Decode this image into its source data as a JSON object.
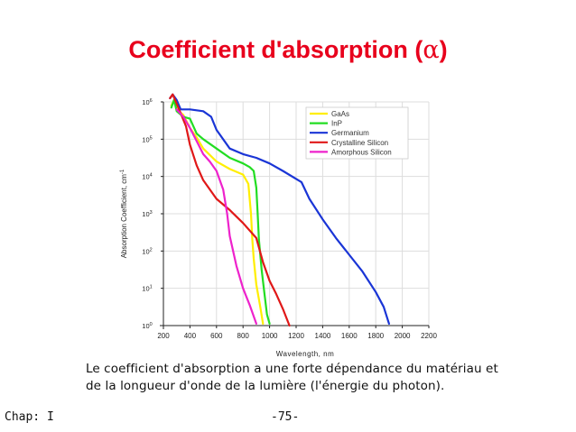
{
  "slide": {
    "title_text": "Coefficient d'absorption (",
    "title_symbol": "α",
    "title_close": ")",
    "caption_line1": "Le coefficient d'absorption a une forte dépendance du matériau et",
    "caption_line2": "de la longueur d'onde de la lumière (l'énergie du photon).",
    "footer_chapter": "Chap: I",
    "footer_page": "-75-"
  },
  "chart_data": {
    "type": "line",
    "xlabel": "Wavelength, nm",
    "ylabel": "Absorption Coefficient, cm",
    "ylabel_superscript": "-1",
    "xlim": [
      200,
      2200
    ],
    "ylim_exponent": [
      0,
      6
    ],
    "y_scale": "log",
    "x_ticks": [
      200,
      400,
      600,
      800,
      1000,
      1200,
      1400,
      1600,
      1800,
      2000,
      2200
    ],
    "y_tick_base": "10",
    "y_tick_exponents": [
      "0",
      "1",
      "2",
      "3",
      "4",
      "5",
      "6"
    ],
    "grid": true,
    "legend_position": "top-right",
    "series": [
      {
        "name": "GaAs",
        "color": "#ffee00",
        "x": [
          260,
          280,
          300,
          350,
          400,
          450,
          500,
          600,
          700,
          800,
          840,
          860,
          870,
          880,
          900,
          930,
          950
        ],
        "y_exp": [
          5.9,
          6.05,
          5.8,
          5.65,
          5.3,
          5.05,
          4.75,
          4.4,
          4.2,
          4.05,
          3.8,
          3.0,
          2.3,
          1.8,
          1.1,
          0.5,
          0.05
        ]
      },
      {
        "name": "InP",
        "color": "#22dd22",
        "x": [
          260,
          280,
          300,
          350,
          400,
          450,
          500,
          600,
          700,
          800,
          850,
          880,
          900,
          910,
          920,
          940,
          960,
          980,
          1000
        ],
        "y_exp": [
          5.85,
          6.05,
          5.75,
          5.6,
          5.55,
          5.15,
          5.0,
          4.75,
          4.5,
          4.35,
          4.25,
          4.15,
          3.7,
          3.0,
          2.3,
          1.5,
          0.9,
          0.3,
          0.05
        ]
      },
      {
        "name": "Germanium",
        "color": "#1a35d6",
        "x": [
          250,
          270,
          300,
          330,
          400,
          500,
          560,
          600,
          700,
          800,
          900,
          1000,
          1100,
          1240,
          1300,
          1400,
          1500,
          1600,
          1700,
          1800,
          1860,
          1900
        ],
        "y_exp": [
          6.1,
          6.2,
          6.05,
          5.8,
          5.8,
          5.75,
          5.6,
          5.25,
          4.75,
          4.6,
          4.5,
          4.35,
          4.15,
          3.85,
          3.4,
          2.85,
          2.35,
          1.9,
          1.45,
          0.9,
          0.5,
          0.05
        ]
      },
      {
        "name": "Crystalline Silicon",
        "color": "#e01818",
        "x": [
          250,
          270,
          300,
          330,
          370,
          400,
          450,
          500,
          600,
          700,
          800,
          900,
          950,
          1000,
          1050,
          1100,
          1150
        ],
        "y_exp": [
          6.1,
          6.2,
          5.95,
          5.7,
          5.35,
          4.85,
          4.3,
          3.9,
          3.4,
          3.1,
          2.75,
          2.35,
          1.7,
          1.2,
          0.85,
          0.45,
          0.0
        ]
      },
      {
        "name": "Amorphous Silicon",
        "color": "#ee22cc",
        "x": [
          300,
          350,
          400,
          450,
          500,
          550,
          600,
          650,
          680,
          700,
          750,
          800,
          850,
          900
        ],
        "y_exp": [
          5.8,
          5.6,
          5.3,
          4.95,
          4.6,
          4.4,
          4.15,
          3.65,
          3.0,
          2.4,
          1.6,
          1.0,
          0.55,
          0.05
        ]
      }
    ]
  }
}
